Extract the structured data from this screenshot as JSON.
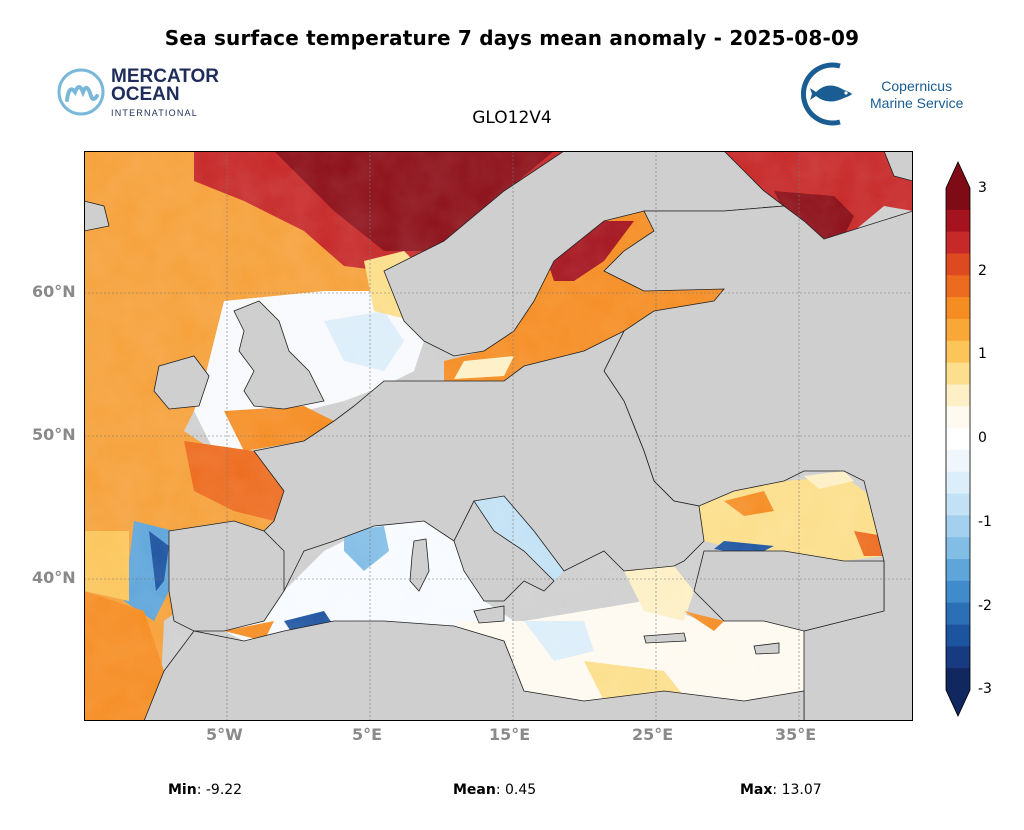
{
  "title": "Sea surface temperature 7 days mean anomaly - 2025-08-09",
  "model_name": "GLO12V4",
  "logos": {
    "mercator": {
      "line1": "MERCATOR",
      "line2": "OCEAN",
      "line3": "INTERNATIONAL"
    },
    "copernicus": {
      "line1": "Copernicus",
      "line2": "Marine Service"
    }
  },
  "axes": {
    "lon_labels": [
      "5°W",
      "5°E",
      "15°E",
      "25°E",
      "35°E"
    ],
    "lat_labels": [
      "60°N",
      "50°N",
      "40°N"
    ]
  },
  "colorbar": {
    "ticks": [
      "3",
      "2",
      "1",
      "0",
      "-1",
      "-2",
      "-3"
    ],
    "min": -3,
    "max": 3,
    "colors": [
      "#7f0b16",
      "#a5141e",
      "#c72828",
      "#de4a1f",
      "#ed6b1e",
      "#f58d23",
      "#f9a838",
      "#fbc55a",
      "#fcdf8c",
      "#fdf0c6",
      "#fffaf0",
      "#ffffff",
      "#f0f7fc",
      "#dceefa",
      "#c2e1f5",
      "#a3d0ee",
      "#82bde6",
      "#5ea5da",
      "#3f8bcb",
      "#2b6fb6",
      "#1d54a0",
      "#173a80",
      "#112760"
    ]
  },
  "stats": {
    "min_label": "Min",
    "min_value": ": -9.22",
    "mean_label": "Mean",
    "mean_value": ": 0.45",
    "max_label": "Max",
    "max_value": ": 13.07"
  }
}
